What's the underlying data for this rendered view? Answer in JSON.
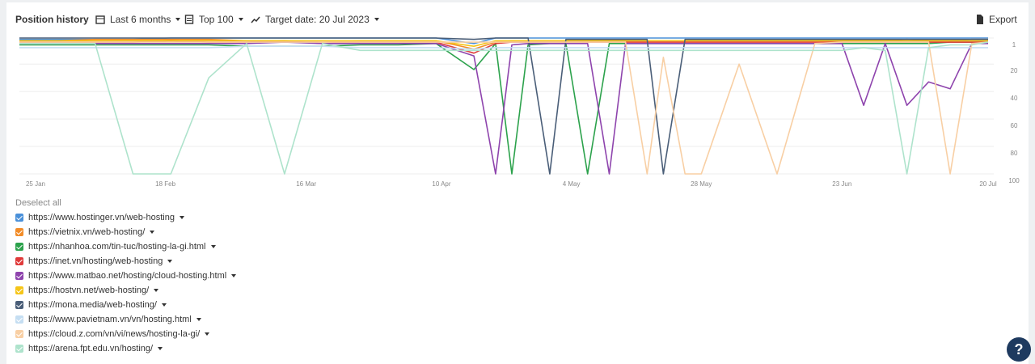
{
  "header": {
    "title": "Position history",
    "period": "Last 6 months",
    "top": "Top 100",
    "target_date": "Target date: 20 Jul 2023",
    "export": "Export"
  },
  "chart_data": {
    "type": "line",
    "x": [
      "22 Jan",
      "29 Jan",
      "5 Feb",
      "12 Feb",
      "19 Feb",
      "26 Feb",
      "5 Mar",
      "12 Mar",
      "19 Mar",
      "26 Mar",
      "2 Apr",
      "9 Apr",
      "16 Apr",
      "20 Apr",
      "23 Apr",
      "26 Apr",
      "30 Apr",
      "3 May",
      "7 May",
      "11 May",
      "14 May",
      "18 May",
      "21 May",
      "25 May",
      "28 May",
      "4 Jun",
      "11 Jun",
      "18 Jun",
      "23 Jun",
      "27 Jun",
      "1 Jul",
      "5 Jul",
      "9 Jul",
      "13 Jul",
      "17 Jul",
      "20 Jul"
    ],
    "xticks": [
      "25 Jan",
      "18 Feb",
      "16 Mar",
      "10 Apr",
      "4 May",
      "28 May",
      "23 Jun",
      "20 Jul"
    ],
    "ylim": [
      1,
      100
    ],
    "yticks": [
      1,
      20,
      40,
      60,
      80,
      100
    ],
    "inverted": true,
    "grid": true,
    "series": [
      {
        "name": "https://www.hostinger.vn/web-hosting",
        "color": "#4a90d9",
        "values": [
          2,
          2,
          2,
          2,
          1,
          1,
          1,
          1,
          1,
          1,
          1,
          1,
          5,
          1,
          1,
          1,
          1,
          1,
          1,
          1,
          1,
          1,
          1,
          1,
          1,
          1,
          1,
          1,
          1,
          1,
          1,
          1,
          1,
          1,
          1,
          1
        ]
      },
      {
        "name": "https://vietnix.vn/web-hosting/",
        "color": "#f28c28",
        "values": [
          3,
          3,
          2,
          2,
          2,
          2,
          3,
          3,
          4,
          3,
          3,
          3,
          9,
          4,
          3,
          3,
          3,
          3,
          3,
          3,
          3,
          3,
          3,
          3,
          3,
          3,
          3,
          3,
          3,
          3,
          3,
          2,
          3,
          3,
          2,
          2
        ]
      },
      {
        "name": "https://nhanhoa.com/tin-tuc/hosting-la-gi.html",
        "color": "#2ca24c",
        "values": [
          6,
          6,
          6,
          6,
          6,
          6,
          7,
          7,
          7,
          6,
          6,
          5,
          24,
          5,
          100,
          6,
          5,
          5,
          100,
          5,
          5,
          5,
          5,
          5,
          5,
          5,
          5,
          5,
          5,
          5,
          5,
          5,
          5,
          4,
          4,
          4
        ]
      },
      {
        "name": "https://inet.vn/hosting/web-hosting",
        "color": "#e03a3a",
        "values": [
          4,
          4,
          4,
          4,
          3,
          4,
          4,
          3,
          5,
          4,
          4,
          4,
          12,
          5,
          4,
          4,
          4,
          4,
          4,
          4,
          4,
          4,
          4,
          4,
          4,
          4,
          4,
          4,
          4,
          4,
          4,
          4,
          4,
          4,
          4,
          4
        ]
      },
      {
        "name": "https://www.matbao.net/hosting/cloud-hosting.html",
        "color": "#8e44ad",
        "values": [
          5,
          5,
          5,
          5,
          5,
          5,
          5,
          4,
          5,
          5,
          5,
          5,
          14,
          100,
          6,
          5,
          5,
          5,
          5,
          100,
          5,
          5,
          5,
          5,
          5,
          5,
          5,
          5,
          5,
          50,
          5,
          50,
          33,
          38,
          5,
          5
        ]
      },
      {
        "name": "https://hostvn.net/web-hosting/",
        "color": "#f5c518",
        "values": [
          3,
          3,
          3,
          3,
          3,
          3,
          3,
          3,
          3,
          3,
          3,
          3,
          7,
          3,
          3,
          3,
          3,
          3,
          3,
          3,
          3,
          3,
          3,
          3,
          3,
          3,
          3,
          3,
          3,
          3,
          3,
          3,
          3,
          3,
          3,
          3
        ]
      },
      {
        "name": "https://mona.media/web-hosting/",
        "color": "#4a5e78",
        "values": [
          1,
          1,
          1,
          1,
          1,
          1,
          1,
          1,
          1,
          1,
          1,
          1,
          2,
          1,
          1,
          1,
          100,
          2,
          2,
          2,
          2,
          2,
          100,
          2,
          2,
          2,
          2,
          2,
          2,
          2,
          2,
          2,
          2,
          2,
          2,
          2
        ]
      },
      {
        "name": "https://www.pavietnam.vn/vn/hosting.html",
        "color": "#c5def2",
        "values": [
          8,
          8,
          8,
          8,
          8,
          8,
          7,
          7,
          7,
          8,
          8,
          8,
          9,
          8,
          8,
          8,
          8,
          8,
          8,
          8,
          8,
          8,
          8,
          8,
          8,
          8,
          8,
          8,
          8,
          8,
          8,
          8,
          8,
          8,
          8,
          8
        ]
      },
      {
        "name": "https://cloud.z.com/vn/vi/news/hosting-la-gi/",
        "color": "#f8cfa4",
        "values": [
          4,
          4,
          4,
          4,
          4,
          4,
          4,
          4,
          4,
          4,
          4,
          4,
          4,
          4,
          4,
          4,
          4,
          4,
          4,
          4,
          4,
          100,
          15,
          100,
          100,
          20,
          100,
          5,
          4,
          4,
          4,
          4,
          4,
          100,
          5,
          4
        ]
      },
      {
        "name": "https://arena.fpt.edu.vn/hosting/",
        "color": "#aee3cc",
        "values": [
          5,
          5,
          5,
          100,
          100,
          30,
          5,
          100,
          5,
          10,
          10,
          10,
          10,
          10,
          10,
          10,
          10,
          10,
          10,
          10,
          10,
          10,
          10,
          10,
          10,
          10,
          10,
          10,
          10,
          8,
          10,
          100,
          8,
          6,
          6,
          4
        ]
      }
    ]
  },
  "legend": {
    "deselect": "Deselect all"
  }
}
